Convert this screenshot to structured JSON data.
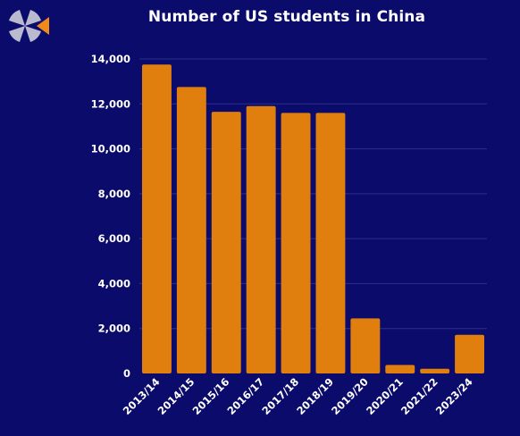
{
  "colors": {
    "background": "#0b0b6b",
    "bar": "#e07f0e",
    "grid": "#2e2e8a",
    "text": "#ffffff",
    "logo_light": "#b9b9cf",
    "logo_accent": "#f08a1b"
  },
  "logo": {
    "icon": "brand-logo-icon"
  },
  "chart_data": {
    "type": "bar",
    "title": "Number of US students in China",
    "xlabel": "",
    "ylabel": "",
    "categories": [
      "2013/14",
      "2014/15",
      "2015/16",
      "2016/17",
      "2017/18",
      "2018/19",
      "2019/20",
      "2020/21",
      "2021/22",
      "2023/24"
    ],
    "values": [
      13750,
      12750,
      11650,
      11900,
      11600,
      11600,
      2450,
      380,
      210,
      1720
    ],
    "ylim": [
      0,
      14000
    ],
    "yticks": [
      0,
      2000,
      4000,
      6000,
      8000,
      10000,
      12000,
      14000
    ],
    "ytick_labels": [
      "0",
      "2,000",
      "4,000",
      "6,000",
      "8,000",
      "10,000",
      "12,000",
      "14,000"
    ],
    "grid": true,
    "legend": "none"
  }
}
